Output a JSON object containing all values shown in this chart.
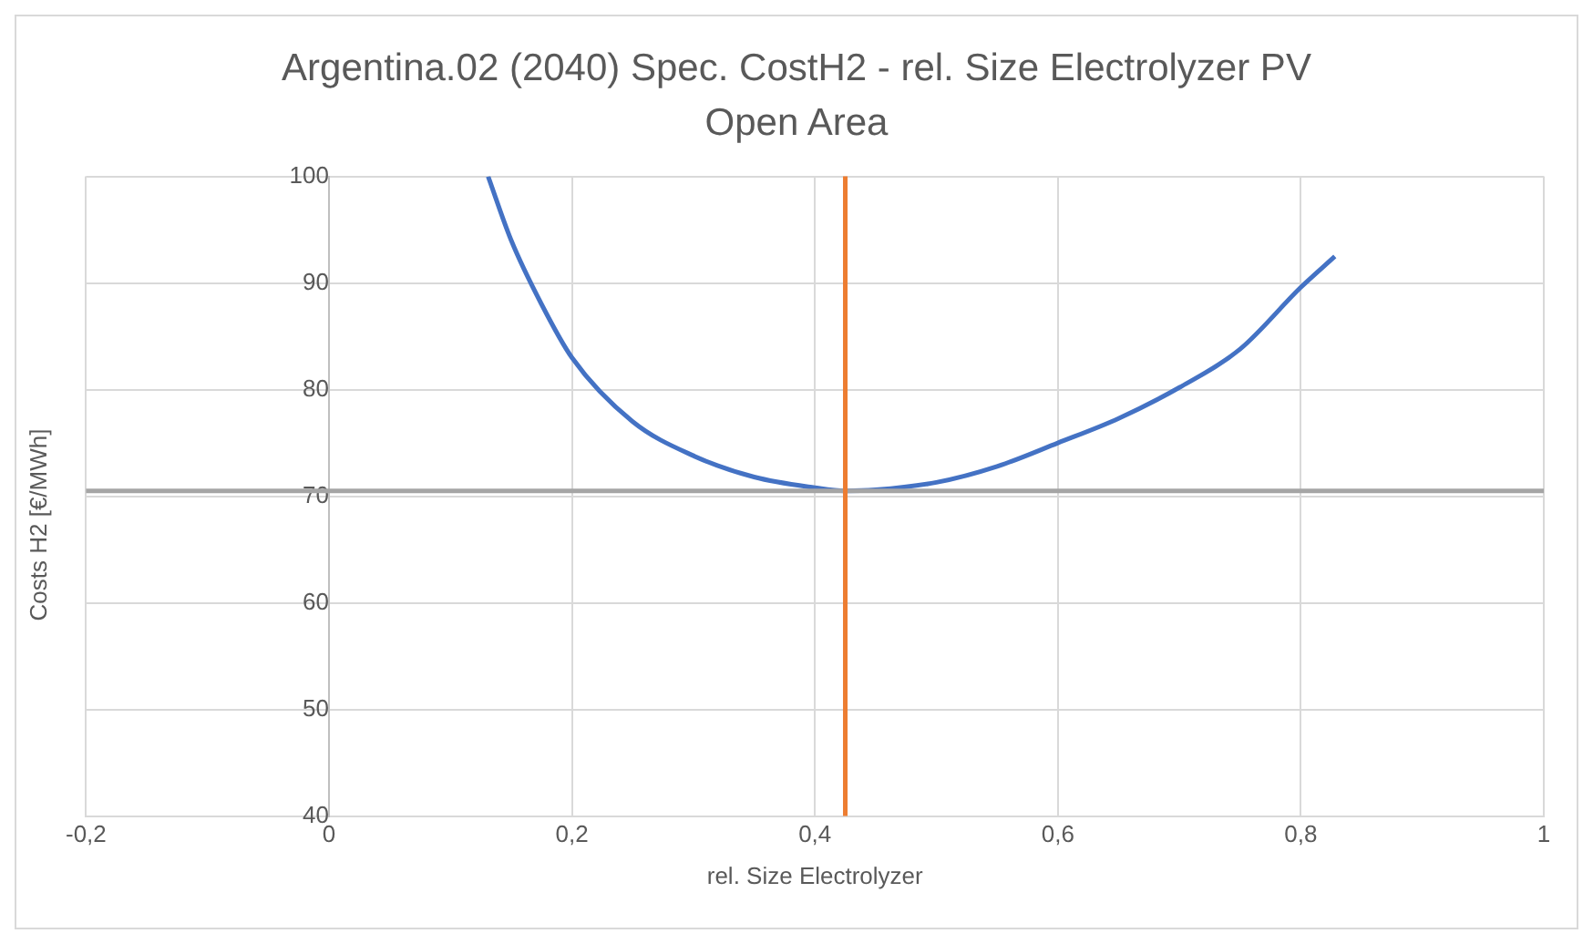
{
  "chart_data": {
    "type": "line",
    "title": "Argentina.02 (2040) Spec. CostH2 - rel. Size Electrolyzer PV Open Area",
    "xlabel": "rel. Size Electrolyzer",
    "ylabel": "Costs H2 [€/MWh]",
    "x": [
      0.131,
      0.15,
      0.175,
      0.2,
      0.25,
      0.3,
      0.35,
      0.4,
      0.425,
      0.45,
      0.5,
      0.55,
      0.6,
      0.65,
      0.7,
      0.75,
      0.8,
      0.828
    ],
    "series": [
      {
        "color": "#4472c4",
        "values": [
          100,
          94,
          88,
          83,
          77,
          73.8,
          71.8,
          70.8,
          70.5,
          70.6,
          71.3,
          72.8,
          75,
          77.3,
          80.2,
          83.8,
          89.6,
          92.5
        ]
      }
    ],
    "xlim": [
      -0.2,
      1
    ],
    "ylim": [
      40,
      100
    ],
    "xticks": [
      {
        "value": -0.2,
        "label": "-0,2"
      },
      0,
      {
        "value": 0.2,
        "label": "0,2"
      },
      {
        "value": 0.4,
        "label": "0,4"
      },
      {
        "value": 0.6,
        "label": "0,6"
      },
      {
        "value": 0.8,
        "label": "0,8"
      },
      1
    ],
    "yticks": [
      40,
      50,
      60,
      70,
      80,
      90,
      100
    ],
    "ref_lines": [
      {
        "axis": "y",
        "value": 70.5,
        "color": "#a5a5a5"
      },
      {
        "axis": "x",
        "value": 0.425,
        "color": "#ed7d31"
      }
    ],
    "grid": true,
    "legend": false,
    "marker": "none",
    "line_style": "solid"
  }
}
